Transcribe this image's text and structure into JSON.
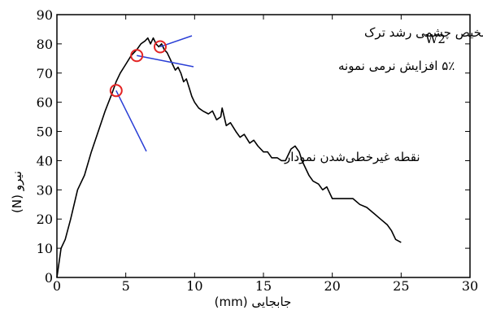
{
  "chart_data": {
    "type": "line",
    "specimen_label": "W2",
    "xlabel": "جابجایی (mm)",
    "ylabel": "نیرو (N)",
    "xlim": [
      0,
      30
    ],
    "ylim": [
      0,
      90
    ],
    "xticks": [
      0,
      5,
      10,
      15,
      20,
      25,
      30
    ],
    "yticks": [
      0,
      10,
      20,
      30,
      40,
      50,
      60,
      70,
      80,
      90
    ],
    "grid": false,
    "series": [
      {
        "color": "#000000",
        "x": [
          0,
          0.3,
          0.6,
          1.0,
          1.5,
          2.0,
          2.5,
          3.0,
          3.5,
          4.0,
          4.3,
          4.6,
          5.0,
          5.4,
          5.8,
          6.1,
          6.4,
          6.6,
          6.8,
          7.0,
          7.2,
          7.4,
          7.6,
          7.8,
          8.0,
          8.2,
          8.4,
          8.6,
          8.8,
          9.0,
          9.2,
          9.4,
          9.6,
          9.8,
          10.0,
          10.3,
          10.6,
          11.0,
          11.3,
          11.6,
          11.9,
          12.0,
          12.3,
          12.6,
          13.0,
          13.3,
          13.6,
          14.0,
          14.3,
          14.6,
          15.0,
          15.3,
          15.6,
          16.0,
          16.3,
          16.6,
          17.0,
          17.3,
          17.6,
          17.8,
          18.0,
          18.3,
          18.6,
          19.0,
          19.3,
          19.6,
          20.0,
          20.3,
          20.6,
          21.0,
          21.5,
          22.0,
          22.5,
          23.0,
          23.5,
          24.0,
          24.3,
          24.6,
          25.0
        ],
        "y": [
          0,
          10,
          13,
          20,
          30,
          35,
          43,
          50,
          57,
          63,
          67,
          70,
          73,
          76,
          78,
          80,
          81,
          82,
          80,
          82,
          80,
          79,
          80,
          78,
          77,
          75,
          73,
          71,
          72,
          70,
          67,
          68,
          65,
          62,
          60,
          58,
          57,
          56,
          57,
          54,
          55,
          58,
          52,
          53,
          50,
          48,
          49,
          46,
          47,
          45,
          43,
          43,
          41,
          41,
          40,
          40,
          44,
          45,
          43,
          40,
          38,
          35,
          33,
          32,
          30,
          31,
          27,
          27,
          27,
          27,
          27,
          25,
          24,
          22,
          20,
          18,
          16,
          13,
          12
        ]
      }
    ],
    "markers": [
      {
        "x": 4.3,
        "y": 64,
        "color": "#e32424"
      },
      {
        "x": 5.8,
        "y": 76,
        "color": "#e32424"
      },
      {
        "x": 7.5,
        "y": 79,
        "color": "#e32424"
      }
    ],
    "annotations": [
      {
        "text": "نقطه غیرخطی‌شدن نمودار",
        "leader_color": "#2a3fd6"
      },
      {
        "text": "۵٪ افزایش نرمی نمونه",
        "leader_color": "#2a3fd6"
      },
      {
        "text": "تشخیص چشمی رشد ترک",
        "leader_color": "#2a3fd6"
      }
    ]
  }
}
